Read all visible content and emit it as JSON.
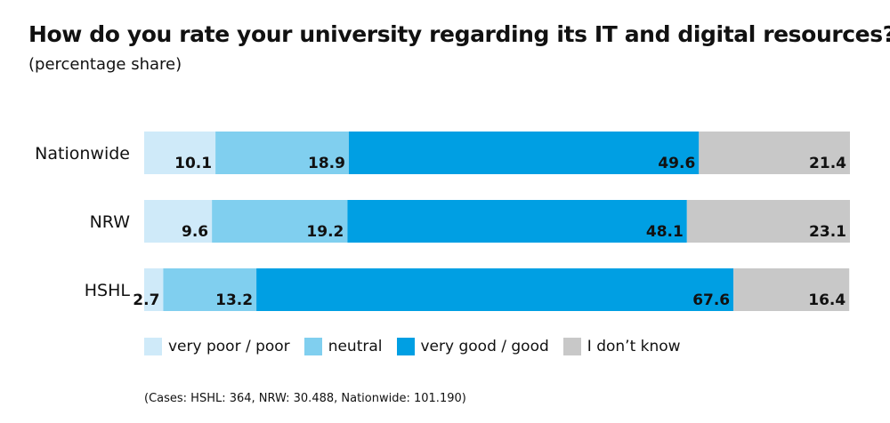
{
  "chart_data": {
    "type": "bar",
    "orientation": "horizontal",
    "stacked": true,
    "title": "How do you rate your university regarding its IT and digital resources??",
    "subtitle": "(percentage share)",
    "categories": [
      "Nationwide",
      "NRW",
      "HSHL"
    ],
    "series": [
      {
        "name": "very poor / poor",
        "color": "#cfeaf9",
        "values": [
          10.1,
          9.6,
          2.7
        ]
      },
      {
        "name": "neutral",
        "color": "#80cfef",
        "values": [
          18.9,
          19.2,
          13.2
        ]
      },
      {
        "name": "very good / good",
        "color": "#009fe3",
        "values": [
          49.6,
          48.1,
          67.6
        ]
      },
      {
        "name": "I don’t know",
        "color": "#c8c8c8",
        "values": [
          21.4,
          23.1,
          16.4
        ]
      }
    ],
    "grid": false,
    "legend_position": "bottom",
    "footnote": "(Cases: HSHL: 364, NRW: 30.488, Nationwide: 101.190)"
  }
}
